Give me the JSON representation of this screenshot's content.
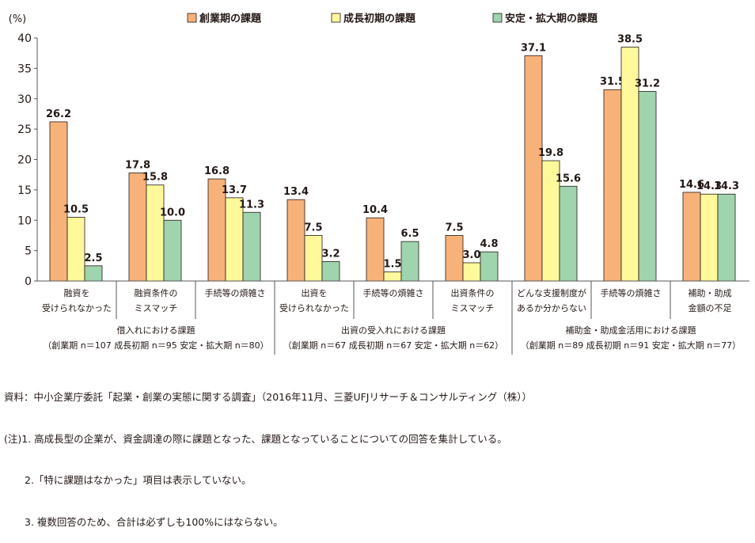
{
  "chart_data": {
    "type": "bar",
    "y_unit": "(%)",
    "ylim": [
      0,
      40
    ],
    "yticks": [
      "0",
      "5",
      "10",
      "15",
      "20",
      "25",
      "30",
      "35",
      "40"
    ],
    "grid": false,
    "legend_position": "top",
    "series": [
      {
        "name": "創業期の課題",
        "color": "#F7B27A",
        "values": [
          26.2,
          17.8,
          16.8,
          13.4,
          10.4,
          7.5,
          37.1,
          31.5,
          14.6
        ]
      },
      {
        "name": "成長初期の課題",
        "color": "#FFF99C",
        "values": [
          10.5,
          15.8,
          13.7,
          7.5,
          1.5,
          3.0,
          19.8,
          38.5,
          14.3
        ]
      },
      {
        "name": "安定・拡大期の課題",
        "color": "#9FD4AE",
        "values": [
          2.5,
          10.0,
          11.3,
          3.2,
          6.5,
          4.8,
          15.6,
          31.2,
          14.3
        ]
      }
    ],
    "categories": [
      [
        "融資を",
        "受けられなかった"
      ],
      [
        "融資条件の",
        "ミスマッチ"
      ],
      [
        "手続等の煩雑さ"
      ],
      [
        "出資を",
        "受けられなかった"
      ],
      [
        "手続等の煩雑さ"
      ],
      [
        "出資条件の",
        "ミスマッチ"
      ],
      [
        "どんな支援制度が",
        "あるか分からない"
      ],
      [
        "手続等の煩雑さ"
      ],
      [
        "補助・助成",
        "金額の不足"
      ]
    ],
    "groups": [
      {
        "label": "借入れにおける課題",
        "sub": "（創業期 n＝107 成長初期 n＝95 安定・拡大期 n＝80）"
      },
      {
        "label": "出資の受入れにおける課題",
        "sub": "（創業期 n＝67 成長初期 n＝67 安定・拡大期 n＝62）"
      },
      {
        "label": "補助金・助成金活用における課題",
        "sub": "（創業期 n＝89 成長初期 n＝91 安定・拡大期 n＝77）"
      }
    ]
  },
  "notes": {
    "source": "資料：中小企業庁委託「起業・創業の実態に関する調査」（2016年11月、三菱UFJリサーチ＆コンサルティング（株））",
    "note1": "(注)1. 高成長型の企業が、資金調達の際に課題となった、課題となっていることについての回答を集計している。",
    "note2": "2.「特に課題はなかった」項目は表示していない。",
    "note3": "3. 複数回答のため、合計は必ずしも100%にはならない。"
  }
}
